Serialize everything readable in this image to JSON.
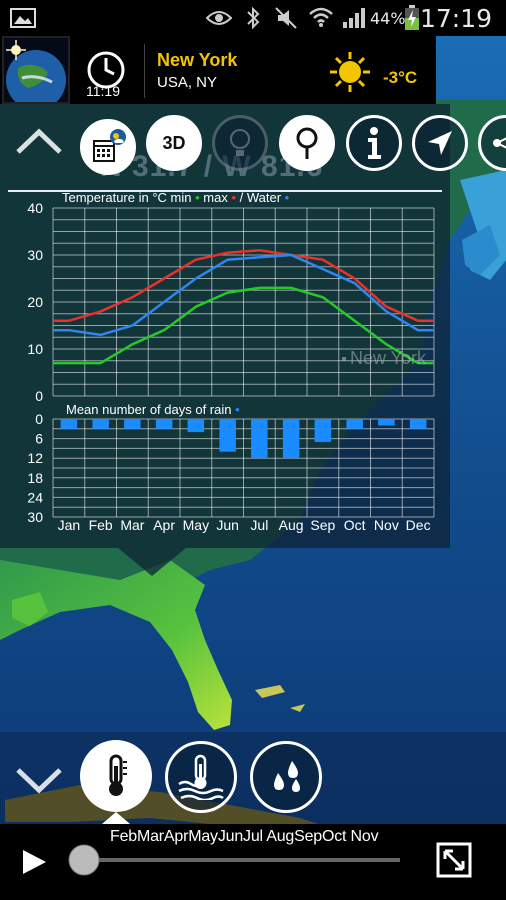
{
  "status_bar": {
    "battery_percent": "44%",
    "time": "17:19",
    "icons": [
      "image-icon",
      "eye-icon",
      "bluetooth-icon",
      "mute-icon",
      "wifi-icon",
      "signal-icon",
      "battery-charging-icon"
    ]
  },
  "location": {
    "city": "New York",
    "region": "USA, NY",
    "local_time": "11:19",
    "temperature": "-3°C",
    "weather_icon": "sun-icon"
  },
  "toolbar": {
    "collapse_icon": "chevron-up-icon",
    "calendar_icon": "calendar-weather-icon",
    "three_d_label": "3D",
    "light_icon": "lightbulb-icon",
    "pin_icon": "location-pin-icon",
    "info_icon": "info-icon",
    "navigate_icon": "navigation-arrow-icon",
    "share_icon": "share-icon"
  },
  "coordinates": "N 31.7 / W 81.6",
  "map_label": "New York",
  "chart_data": [
    {
      "type": "line",
      "title": "Temperature in °C min",
      "title_parts": {
        "prefix": "Temperature in °C min",
        "max": "max",
        "water": "/ Water"
      },
      "categories": [
        "Jan",
        "Feb",
        "Mar",
        "Apr",
        "May",
        "Jun",
        "Jul",
        "Aug",
        "Sep",
        "Oct",
        "Nov",
        "Dec"
      ],
      "ylim": [
        0,
        40
      ],
      "yticks": [
        0,
        10,
        20,
        30,
        40
      ],
      "grid": true,
      "series": [
        {
          "name": "min",
          "color": "#27c927",
          "values": [
            7,
            7,
            11,
            14,
            19,
            22,
            23,
            23,
            21,
            16,
            11,
            7
          ]
        },
        {
          "name": "max",
          "color": "#e8332c",
          "values": [
            16,
            18,
            21,
            25,
            29,
            30.5,
            31,
            30,
            29,
            25,
            19,
            16
          ]
        },
        {
          "name": "Water",
          "color": "#2f86f0",
          "values": [
            14,
            13,
            15,
            20,
            25,
            29,
            29.5,
            30,
            27,
            24,
            18,
            14
          ]
        }
      ]
    },
    {
      "type": "bar",
      "title": "Mean number of days of rain",
      "color": "#1a8cff",
      "categories": [
        "Jan",
        "Feb",
        "Mar",
        "Apr",
        "May",
        "Jun",
        "Jul",
        "Aug",
        "Sep",
        "Oct",
        "Nov",
        "Dec"
      ],
      "ylim": [
        0,
        30
      ],
      "yticks": [
        0,
        6,
        12,
        18,
        24,
        30
      ],
      "inverted": true,
      "grid": true,
      "values": [
        3,
        3,
        3,
        3,
        4,
        10,
        12,
        12,
        7,
        3,
        2,
        3
      ]
    }
  ],
  "layer_buttons": {
    "expand_icon": "chevron-down-icon",
    "temperature_icon": "thermometer-icon",
    "water_temp_icon": "water-thermometer-icon",
    "rain_icon": "raindrops-icon"
  },
  "timeline": {
    "play_icon": "play-icon",
    "months": "FebMarAprMayJunJul AugSepOct Nov",
    "position": 0.0,
    "fullscreen_icon": "fullscreen-icon"
  }
}
